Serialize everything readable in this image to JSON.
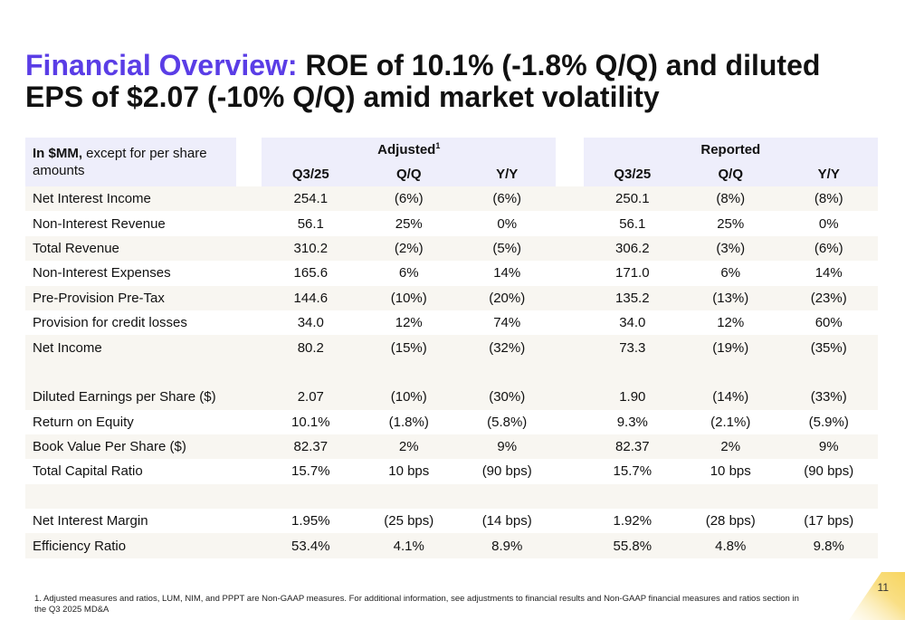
{
  "title": {
    "accent": "Financial Overview:",
    "rest": " ROE of 10.1% (-1.8% Q/Q) and diluted EPS of $2.07 (-10% Q/Q) amid market volatility"
  },
  "table": {
    "header_label_bold": "In $MM,",
    "header_label_rest": " except for per share amounts",
    "group_adjusted": "Adjusted",
    "group_adjusted_sup": "1",
    "group_reported": "Reported",
    "col_q325": "Q3/25",
    "col_qq": "Q/Q",
    "col_yy": "Y/Y",
    "rows": [
      {
        "label": "Net Interest Income",
        "a": [
          "254.1",
          "(6%)",
          "(6%)"
        ],
        "r": [
          "250.1",
          "(8%)",
          "(8%)"
        ]
      },
      {
        "label": "Non-Interest Revenue",
        "a": [
          "56.1",
          "25%",
          "0%"
        ],
        "r": [
          "56.1",
          "25%",
          "0%"
        ]
      },
      {
        "label": "Total Revenue",
        "a": [
          "310.2",
          "(2%)",
          "(5%)"
        ],
        "r": [
          "306.2",
          "(3%)",
          "(6%)"
        ]
      },
      {
        "label": "Non-Interest Expenses",
        "a": [
          "165.6",
          "6%",
          "14%"
        ],
        "r": [
          "171.0",
          "6%",
          "14%"
        ]
      },
      {
        "label": "Pre-Provision Pre-Tax",
        "a": [
          "144.6",
          "(10%)",
          "(20%)"
        ],
        "r": [
          "135.2",
          "(13%)",
          "(23%)"
        ]
      },
      {
        "label": "Provision for credit losses",
        "a": [
          "34.0",
          "12%",
          "74%"
        ],
        "r": [
          "34.0",
          "12%",
          "60%"
        ]
      },
      {
        "label": "Net Income",
        "a": [
          "80.2",
          "(15%)",
          "(32%)"
        ],
        "r": [
          "73.3",
          "(19%)",
          "(35%)"
        ]
      },
      {
        "label": "Diluted Earnings per Share ($)",
        "a": [
          "2.07",
          "(10%)",
          "(30%)"
        ],
        "r": [
          "1.90",
          "(14%)",
          "(33%)"
        ]
      },
      {
        "label": "Return on Equity",
        "a": [
          "10.1%",
          "(1.8%)",
          "(5.8%)"
        ],
        "r": [
          "9.3%",
          "(2.1%)",
          "(5.9%)"
        ]
      },
      {
        "label": "Book Value Per Share ($)",
        "a": [
          "82.37",
          "2%",
          "9%"
        ],
        "r": [
          "82.37",
          "2%",
          "9%"
        ]
      },
      {
        "label": "Total Capital Ratio",
        "a": [
          "15.7%",
          "10 bps",
          "(90 bps)"
        ],
        "r": [
          "15.7%",
          "10 bps",
          "(90 bps)"
        ]
      },
      {
        "label": "Net Interest Margin",
        "a": [
          "1.95%",
          "(25 bps)",
          "(14 bps)"
        ],
        "r": [
          "1.92%",
          "(28 bps)",
          "(17 bps)"
        ]
      },
      {
        "label": "Efficiency Ratio",
        "a": [
          "53.4%",
          "4.1%",
          "8.9%"
        ],
        "r": [
          "55.8%",
          "4.8%",
          "9.8%"
        ]
      }
    ]
  },
  "footnote": "1. Adjusted measures and ratios, LUM, NIM, and PPPT are Non-GAAP measures. For additional information, see adjustments to financial results and Non-GAAP financial measures and ratios section in the Q3 2025 MD&A",
  "page_number": "11",
  "colors": {
    "accent": "#5a3de6",
    "header_bg": "#eeeefb",
    "row_shade": "#f8f6f1",
    "page_tab": "#f7d560"
  }
}
